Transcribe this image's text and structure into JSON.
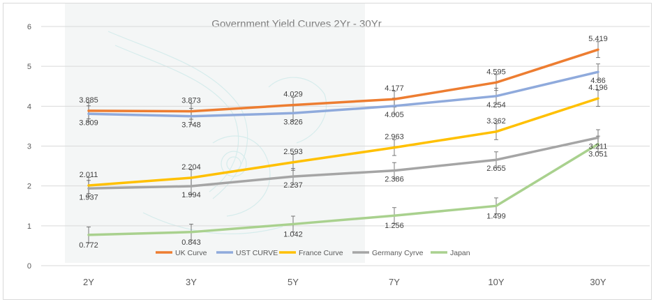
{
  "chart_data": {
    "type": "line",
    "title": "Government Yield Curves 2Yr - 30Yr",
    "xlabel": "",
    "ylabel": "",
    "categories": [
      "2Y",
      "3Y",
      "5Y",
      "7Y",
      "10Y",
      "30Y"
    ],
    "ylim": [
      0,
      6
    ],
    "yticks": [
      0,
      1,
      2,
      3,
      4,
      5,
      6
    ],
    "grid": true,
    "legend_position": "bottom",
    "series": [
      {
        "name": "UK Curve",
        "color": "#ED7D31",
        "values": [
          3.885,
          3.873,
          4.029,
          4.177,
          4.595,
          5.419
        ],
        "labels": [
          "3.885",
          "3.873",
          "4.029",
          "4.177",
          "4.595",
          "5.419"
        ]
      },
      {
        "name": "UST CURVE",
        "color": "#8FAADC",
        "values": [
          3.809,
          3.748,
          3.826,
          4.005,
          4.254,
          4.86
        ],
        "labels": [
          "3.809",
          "3.748",
          "3.826",
          "4.005",
          "4.254",
          "4.86"
        ]
      },
      {
        "name": "France Curve",
        "color": "#FFC000",
        "values": [
          2.011,
          2.204,
          2.593,
          2.963,
          3.362,
          4.196
        ],
        "labels": [
          "2.011",
          "2.204",
          "2.593",
          "2.963",
          "3.362",
          "4.196"
        ]
      },
      {
        "name": "Germany Cyrve",
        "color": "#A5A5A5",
        "values": [
          1.937,
          1.994,
          2.237,
          2.386,
          2.655,
          3.211
        ],
        "labels": [
          "1.937",
          "1.994",
          "2.237",
          "2.386",
          "2.655",
          "3.211"
        ]
      },
      {
        "name": "Japan",
        "color": "#A9D18E",
        "values": [
          0.772,
          0.843,
          1.042,
          1.256,
          1.499,
          3.051
        ],
        "labels": [
          "0.772",
          "0.843",
          "1.042",
          "1.256",
          "1.499",
          "3.051"
        ]
      }
    ]
  }
}
